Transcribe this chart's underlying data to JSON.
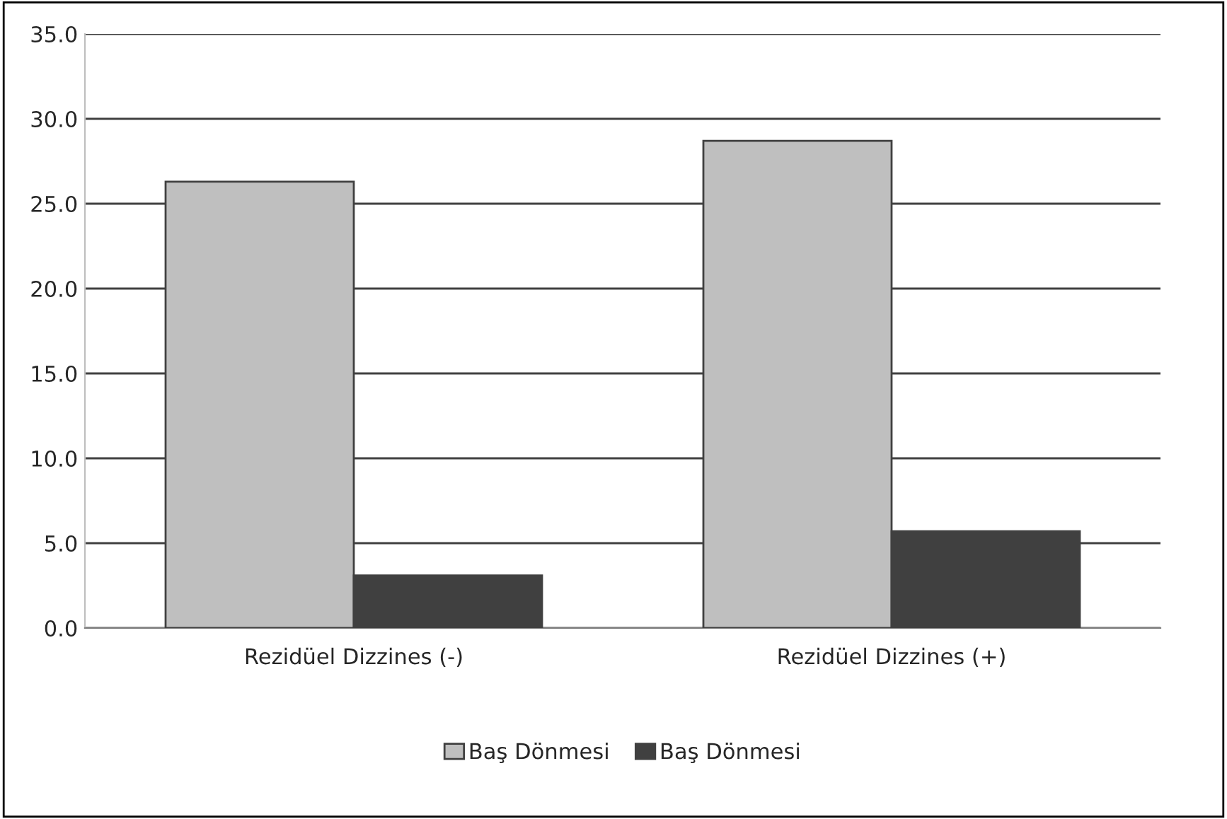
{
  "chart_data": {
    "type": "bar",
    "categories": [
      "Rezidüel Dizzines (-)",
      "Rezidüel Dizzines (+)"
    ],
    "series": [
      {
        "name": "Baş Dönmesi",
        "color": "#bfbfbf",
        "values": [
          26.3,
          28.7
        ]
      },
      {
        "name": "Baş Dönmesi",
        "color": "#404040",
        "values": [
          3.1,
          5.7
        ]
      }
    ],
    "ylim": [
      0,
      35
    ],
    "yticks": [
      {
        "value": 0,
        "label": "0.0"
      },
      {
        "value": 5,
        "label": "5.0"
      },
      {
        "value": 10,
        "label": "10.0"
      },
      {
        "value": 15,
        "label": "15.0"
      },
      {
        "value": 20,
        "label": "20.0"
      },
      {
        "value": 25,
        "label": "25.0"
      },
      {
        "value": 30,
        "label": "30.0"
      },
      {
        "value": 35,
        "label": "35.0"
      }
    ],
    "grid": "y",
    "legend": "bottom"
  }
}
